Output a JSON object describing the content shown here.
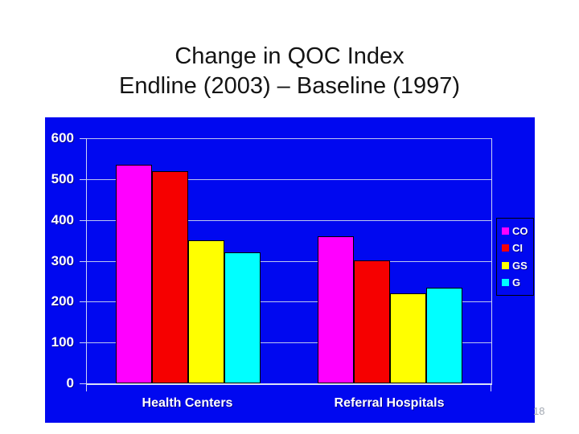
{
  "slide": {
    "title_line1": "Change in QOC Index",
    "title_line2": "Endline (2003) – Baseline (1997)",
    "page_number": "18"
  },
  "chart_data": {
    "type": "bar",
    "title": "Change in QOC Index Endline (2003) – Baseline (1997)",
    "categories": [
      "Health Centers",
      "Referral Hospitals"
    ],
    "series": [
      {
        "name": "CO",
        "color": "#ff00ff",
        "values": [
          535,
          360
        ]
      },
      {
        "name": "CI",
        "color": "#f60000",
        "values": [
          520,
          300
        ]
      },
      {
        "name": "GS",
        "color": "#ffff00",
        "values": [
          350,
          220
        ]
      },
      {
        "name": "G",
        "color": "#00ffff",
        "values": [
          320,
          235
        ]
      }
    ],
    "xlabel": "",
    "ylabel": "",
    "ylim": [
      0,
      600
    ],
    "ytick_step": 100,
    "grid": true,
    "legend_position": "right",
    "plot_bg_color": "#0008f0",
    "gridline_color": "#bcc6ef",
    "axis_color": "#ccd4f4"
  }
}
